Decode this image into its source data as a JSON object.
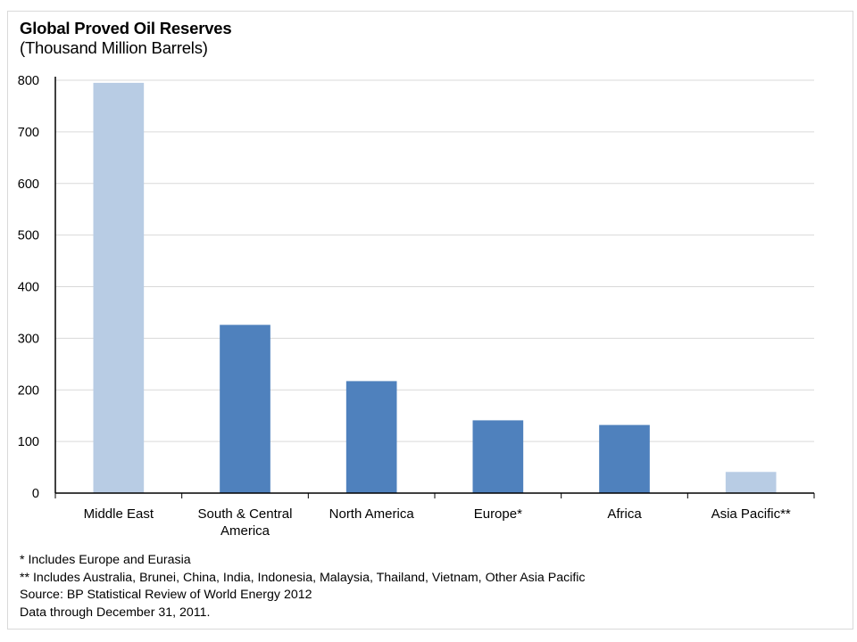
{
  "chart_data": {
    "type": "bar",
    "title": "Global Proved Oil Reserves",
    "subtitle": "(Thousand Million Barrels)",
    "categories": [
      [
        "Middle East"
      ],
      [
        "South & Central",
        "America"
      ],
      [
        "North America"
      ],
      [
        "Europe*"
      ],
      [
        "Africa"
      ],
      [
        "Asia Pacific**"
      ]
    ],
    "values": [
      795,
      326,
      217,
      141,
      132,
      41
    ],
    "bar_colors": [
      "#b8cce4",
      "#4f81bd",
      "#4f81bd",
      "#4f81bd",
      "#4f81bd",
      "#b8cce4"
    ],
    "ylim": [
      0,
      800
    ],
    "yticks": [
      0,
      100,
      200,
      300,
      400,
      500,
      600,
      700,
      800
    ],
    "grid": true,
    "gridline_color": "#d9d9d9",
    "axis_color": "#000000"
  },
  "notes": [
    "* Includes Europe and Eurasia",
    "** Includes Australia, Brunei, China, India, Indonesia, Malaysia, Thailand, Vietnam, Other Asia Pacific",
    "Source: BP Statistical Review of World Energy 2012",
    "Data through December 31, 2011."
  ]
}
